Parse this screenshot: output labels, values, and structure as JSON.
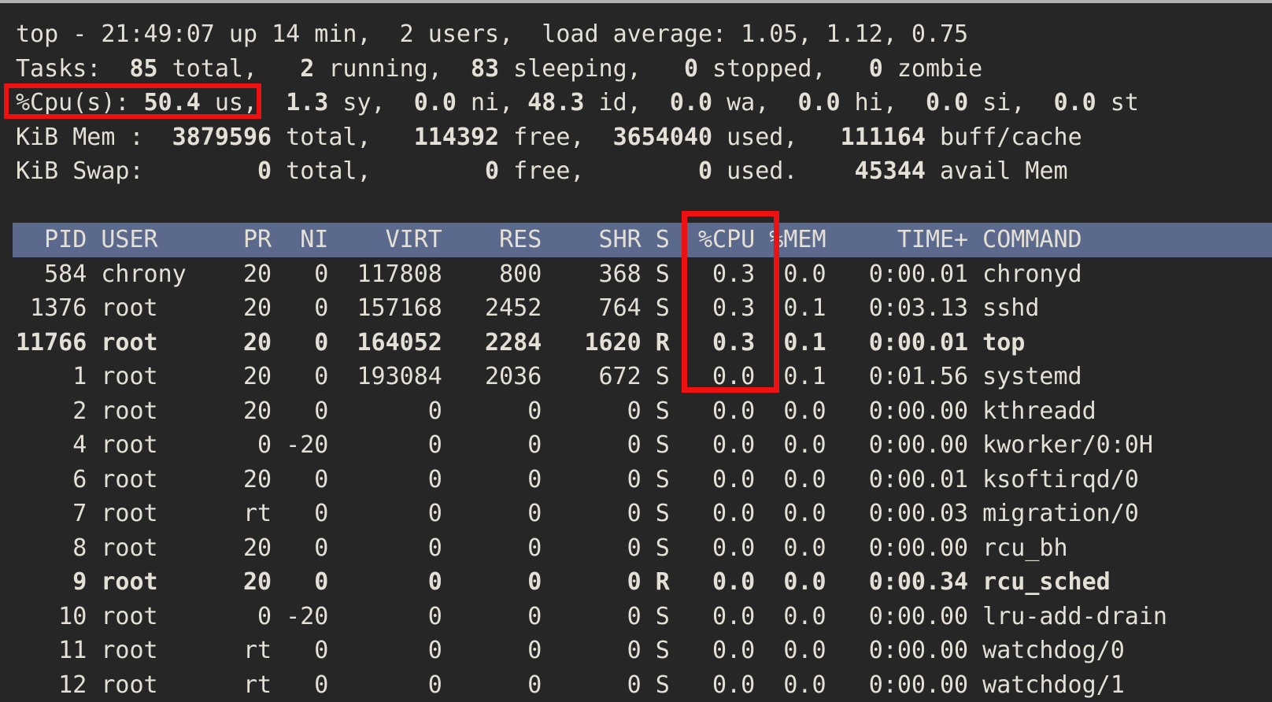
{
  "colors": {
    "bg": "#262626",
    "fg": "#e4e0d6",
    "header_row_bg": "#5b6a8c",
    "annotation_red": "#ee1111",
    "window_edge": "#b2afaf"
  },
  "terminal": {
    "summary_lines": [
      {
        "name": "uptime",
        "segments": [
          {
            "t": "top - 21:49:07 up 14 min,  2 users,  load average: 1.05, 1.12, 0.75",
            "b": false
          }
        ]
      },
      {
        "name": "tasks",
        "segments": [
          {
            "t": "Tasks:  ",
            "b": false
          },
          {
            "t": "85",
            "b": true
          },
          {
            "t": " total,   ",
            "b": false
          },
          {
            "t": "2",
            "b": true
          },
          {
            "t": " running,  ",
            "b": false
          },
          {
            "t": "83",
            "b": true
          },
          {
            "t": " sleeping,   ",
            "b": false
          },
          {
            "t": "0",
            "b": true
          },
          {
            "t": " stopped,   ",
            "b": false
          },
          {
            "t": "0",
            "b": true
          },
          {
            "t": " zombie",
            "b": false
          }
        ]
      },
      {
        "name": "cpu",
        "segments": [
          {
            "t": "%Cpu(s): ",
            "b": false
          },
          {
            "t": "50.4",
            "b": true
          },
          {
            "t": " us,  ",
            "b": false
          },
          {
            "t": "1.3",
            "b": true
          },
          {
            "t": " sy,  ",
            "b": false
          },
          {
            "t": "0.0",
            "b": true
          },
          {
            "t": " ni, ",
            "b": false
          },
          {
            "t": "48.3",
            "b": true
          },
          {
            "t": " id,  ",
            "b": false
          },
          {
            "t": "0.0",
            "b": true
          },
          {
            "t": " wa,  ",
            "b": false
          },
          {
            "t": "0.0",
            "b": true
          },
          {
            "t": " hi,  ",
            "b": false
          },
          {
            "t": "0.0",
            "b": true
          },
          {
            "t": " si,  ",
            "b": false
          },
          {
            "t": "0.0",
            "b": true
          },
          {
            "t": " st",
            "b": false
          }
        ]
      },
      {
        "name": "mem",
        "segments": [
          {
            "t": "KiB Mem : ",
            "b": false
          },
          {
            "t": " 3879596",
            "b": true
          },
          {
            "t": " total, ",
            "b": false
          },
          {
            "t": "  114392",
            "b": true
          },
          {
            "t": " free, ",
            "b": false
          },
          {
            "t": " 3654040",
            "b": true
          },
          {
            "t": " used, ",
            "b": false
          },
          {
            "t": "  111164",
            "b": true
          },
          {
            "t": " buff/cache",
            "b": false
          }
        ]
      },
      {
        "name": "swap",
        "segments": [
          {
            "t": "KiB Swap: ",
            "b": false
          },
          {
            "t": "       0",
            "b": true
          },
          {
            "t": " total, ",
            "b": false
          },
          {
            "t": "       0",
            "b": true
          },
          {
            "t": " free, ",
            "b": false
          },
          {
            "t": "       0",
            "b": true
          },
          {
            "t": " used. ",
            "b": false
          },
          {
            "t": "   45344",
            "b": true
          },
          {
            "t": " avail Mem",
            "b": false
          }
        ]
      }
    ],
    "process_table": {
      "columns": [
        "PID",
        "USER",
        "PR",
        "NI",
        "VIRT",
        "RES",
        "SHR",
        "S",
        "%CPU",
        "%MEM",
        "TIME+",
        "COMMAND"
      ],
      "rows": [
        {
          "cells": [
            "584",
            "chrony",
            "20",
            "0",
            "117808",
            "800",
            "368",
            "S",
            "0.3",
            "0.0",
            "0:00.01",
            "chronyd"
          ],
          "bold": false,
          "clipped": false
        },
        {
          "cells": [
            "1376",
            "root",
            "20",
            "0",
            "157168",
            "2452",
            "764",
            "S",
            "0.3",
            "0.1",
            "0:03.13",
            "sshd"
          ],
          "bold": false,
          "clipped": false
        },
        {
          "cells": [
            "11766",
            "root",
            "20",
            "0",
            "164052",
            "2284",
            "1620",
            "R",
            "0.3",
            "0.1",
            "0:00.01",
            "top"
          ],
          "bold": true,
          "clipped": false
        },
        {
          "cells": [
            "1",
            "root",
            "20",
            "0",
            "193084",
            "2036",
            "672",
            "S",
            "0.0",
            "0.1",
            "0:01.56",
            "systemd"
          ],
          "bold": false,
          "clipped": false
        },
        {
          "cells": [
            "2",
            "root",
            "20",
            "0",
            "0",
            "0",
            "0",
            "S",
            "0.0",
            "0.0",
            "0:00.00",
            "kthreadd"
          ],
          "bold": false,
          "clipped": false
        },
        {
          "cells": [
            "4",
            "root",
            "0",
            "-20",
            "0",
            "0",
            "0",
            "S",
            "0.0",
            "0.0",
            "0:00.00",
            "kworker/0:0H"
          ],
          "bold": false,
          "clipped": false
        },
        {
          "cells": [
            "6",
            "root",
            "20",
            "0",
            "0",
            "0",
            "0",
            "S",
            "0.0",
            "0.0",
            "0:00.01",
            "ksoftirqd/0"
          ],
          "bold": false,
          "clipped": false
        },
        {
          "cells": [
            "7",
            "root",
            "rt",
            "0",
            "0",
            "0",
            "0",
            "S",
            "0.0",
            "0.0",
            "0:00.03",
            "migration/0"
          ],
          "bold": false,
          "clipped": false
        },
        {
          "cells": [
            "8",
            "root",
            "20",
            "0",
            "0",
            "0",
            "0",
            "S",
            "0.0",
            "0.0",
            "0:00.00",
            "rcu_bh"
          ],
          "bold": false,
          "clipped": false
        },
        {
          "cells": [
            "9",
            "root",
            "20",
            "0",
            "0",
            "0",
            "0",
            "R",
            "0.0",
            "0.0",
            "0:00.34",
            "rcu_sched"
          ],
          "bold": true,
          "clipped": false
        },
        {
          "cells": [
            "10",
            "root",
            "0",
            "-20",
            "0",
            "0",
            "0",
            "S",
            "0.0",
            "0.0",
            "0:00.00",
            "lru-add-drain"
          ],
          "bold": false,
          "clipped": false
        },
        {
          "cells": [
            "11",
            "root",
            "rt",
            "0",
            "0",
            "0",
            "0",
            "S",
            "0.0",
            "0.0",
            "0:00.00",
            "watchdog/0"
          ],
          "bold": false,
          "clipped": false
        },
        {
          "cells": [
            "12",
            "root",
            "rt",
            "0",
            "0",
            "0",
            "0",
            "S",
            "0.0",
            "0.0",
            "0:00.00",
            "watchdog/1"
          ],
          "bold": false,
          "clipped": true
        }
      ]
    },
    "annotations": [
      {
        "name": "cpu-summary-highlight",
        "highlights": "%Cpu(s): 50.4 us,"
      },
      {
        "name": "cpu-column-highlight",
        "highlights": "%CPU column values 0.3 / 0.3 / 0.3 / 0.0"
      }
    ]
  }
}
